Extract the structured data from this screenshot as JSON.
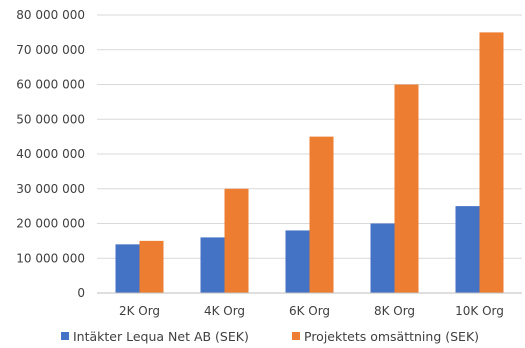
{
  "colors": {
    "series1": "#4472C4",
    "series2": "#ED7D31",
    "grid": "#D9D9D9",
    "axis": "#BFBFBF",
    "text": "#404040"
  },
  "chart_data": {
    "type": "bar",
    "title": "",
    "xlabel": "",
    "ylabel": "",
    "categories": [
      "2K Org",
      "4K Org",
      "6K Org",
      "8K Org",
      "10K Org"
    ],
    "series": [
      {
        "name": "Intäkter Lequa Net AB (SEK)",
        "values": [
          14000000,
          16000000,
          18000000,
          20000000,
          25000000
        ]
      },
      {
        "name": "Projektets omsättning (SEK)",
        "values": [
          15000000,
          30000000,
          45000000,
          60000000,
          75000000
        ]
      }
    ],
    "ylim": [
      0,
      80000000
    ],
    "yticks": [
      "0",
      "10 000 000",
      "20 000 000",
      "30 000 000",
      "40 000 000",
      "50 000 000",
      "60 000 000",
      "70 000 000",
      "80 000 000"
    ],
    "grid": true,
    "legend": "bottom"
  }
}
